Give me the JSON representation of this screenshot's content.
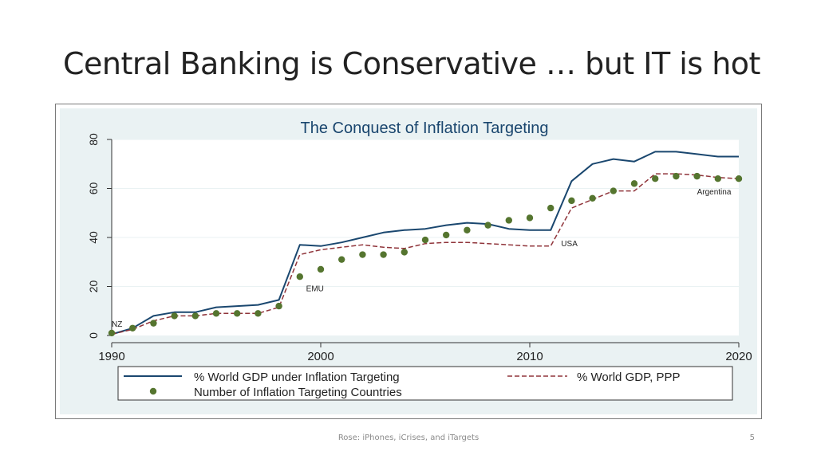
{
  "slide": {
    "title": "Central Banking is Conservative … but IT is hot",
    "footer": "Rose: iPhones, iCrises, and iTargets",
    "page_number": "5"
  },
  "colors": {
    "plot_bg": "#eaf2f3",
    "inner_bg": "#ffffff",
    "title_color": "#1a466e",
    "gdp_line": "#1a476f",
    "ppp_line": "#90353b",
    "dots": "#55752f"
  },
  "chart_data": {
    "type": "line",
    "title": "The Conquest of Inflation Targeting",
    "xlabel": "",
    "ylabel": "",
    "xlim": [
      1990,
      2020
    ],
    "ylim": [
      0,
      80
    ],
    "x_ticks": [
      "1990",
      "2000",
      "2010",
      "2020"
    ],
    "y_ticks": [
      "0",
      "20",
      "40",
      "60",
      "80"
    ],
    "grid": true,
    "legend_position": "bottom",
    "series": [
      {
        "name": "% World GDP under Inflation Targeting",
        "style": "solid-line",
        "x": [
          1990,
          1991,
          1992,
          1993,
          1994,
          1995,
          1996,
          1997,
          1998,
          1999,
          2000,
          2001,
          2002,
          2003,
          2004,
          2005,
          2006,
          2007,
          2008,
          2009,
          2010,
          2011,
          2012,
          2013,
          2014,
          2015,
          2016,
          2017,
          2018,
          2019,
          2020
        ],
        "y": [
          0.5,
          3,
          8,
          9.5,
          9.5,
          11.5,
          12,
          12.5,
          14.5,
          37,
          36.5,
          38,
          40,
          42,
          43,
          43.5,
          45,
          46,
          45.5,
          43.5,
          43,
          43,
          63,
          70,
          72,
          71,
          75,
          75,
          74,
          73,
          73
        ]
      },
      {
        "name": "% World GDP, PPP",
        "style": "dashed-line",
        "x": [
          1990,
          1991,
          1992,
          1993,
          1994,
          1995,
          1996,
          1997,
          1998,
          1999,
          2000,
          2001,
          2002,
          2003,
          2004,
          2005,
          2006,
          2007,
          2008,
          2009,
          2010,
          2011,
          2012,
          2013,
          2014,
          2015,
          2016,
          2017,
          2018,
          2019,
          2020
        ],
        "y": [
          0.5,
          2.5,
          6,
          8,
          8,
          9,
          9,
          9,
          11.5,
          33,
          35,
          36,
          37,
          36,
          35.5,
          37.5,
          38,
          38,
          37.5,
          37,
          36.5,
          36.5,
          52,
          55.5,
          59,
          59,
          66,
          66,
          65.5,
          64.5,
          64
        ]
      },
      {
        "name": "Number of Inflation Targeting Countries",
        "style": "dots",
        "x": [
          1990,
          1991,
          1992,
          1993,
          1994,
          1995,
          1996,
          1997,
          1998,
          1999,
          2000,
          2001,
          2002,
          2003,
          2004,
          2005,
          2006,
          2007,
          2008,
          2009,
          2010,
          2011,
          2012,
          2013,
          2014,
          2015,
          2016,
          2017,
          2018,
          2019,
          2020
        ],
        "y": [
          1,
          3,
          5,
          8,
          8,
          9,
          9,
          9,
          12,
          24,
          27,
          31,
          33,
          33,
          34,
          39,
          41,
          43,
          45,
          47,
          48,
          52,
          55,
          56,
          59,
          62,
          64,
          65,
          65,
          64,
          64
        ]
      }
    ],
    "annotations": [
      {
        "text": "NZ",
        "x": 1990,
        "y": 3.5
      },
      {
        "text": "EMU",
        "x": 1999.3,
        "y": 18
      },
      {
        "text": "USA",
        "x": 2011.5,
        "y": 36.5
      },
      {
        "text": "Argentina",
        "x": 2018,
        "y": 57.5
      }
    ]
  }
}
